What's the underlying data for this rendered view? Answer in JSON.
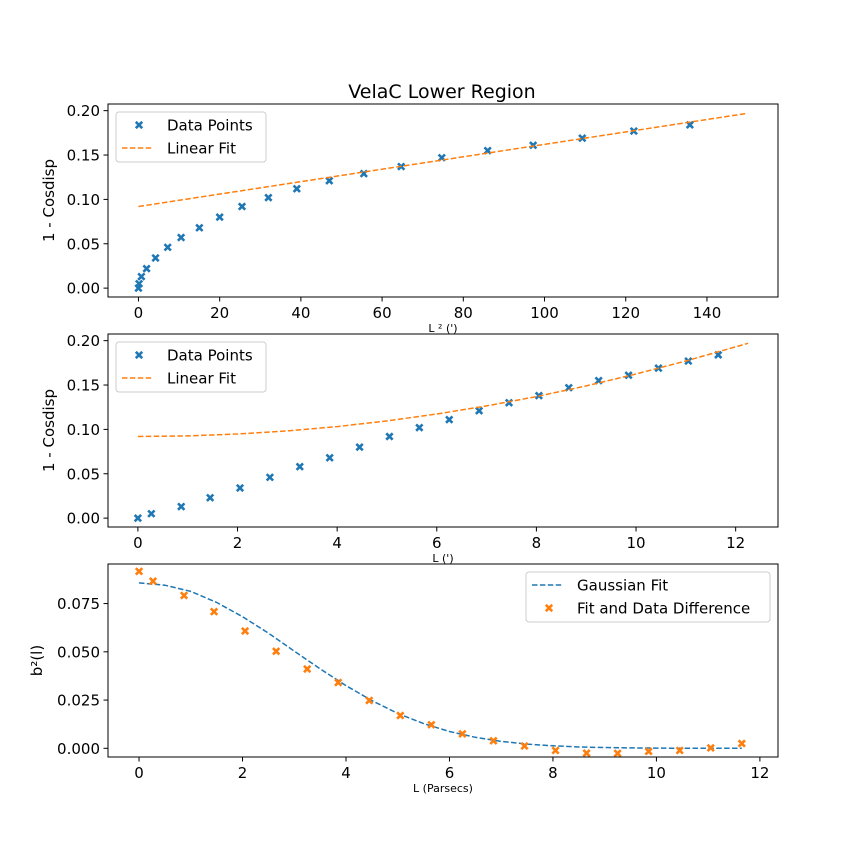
{
  "figure_title": "VelaC Lower Region",
  "colors": {
    "blue": "#1f77b4",
    "orange": "#ff7f0e"
  },
  "chart_data": [
    {
      "type": "scatter",
      "title": "VelaC Lower Region",
      "xlabel": "L ² (')",
      "ylabel": "1 - Cosdisp",
      "xlim": [
        -7.5,
        157.5
      ],
      "ylim": [
        -0.01,
        0.2075
      ],
      "xticks": [
        0,
        20,
        40,
        60,
        80,
        100,
        120,
        140
      ],
      "yticks": [
        0.0,
        0.05,
        0.1,
        0.15,
        0.2
      ],
      "ytick_labels": [
        "0.00",
        "0.05",
        "0.10",
        "0.15",
        "0.20"
      ],
      "legend": {
        "position": "top-left",
        "entries": [
          "Data Points",
          "Linear Fit"
        ]
      },
      "series": [
        {
          "name": "Data Points",
          "kind": "scatter",
          "marker": "x",
          "color": "#1f77b4",
          "x": [
            0,
            0.15,
            0.72,
            2.0,
            4.2,
            7.2,
            10.5,
            15.0,
            20.0,
            25.5,
            32.0,
            39.0,
            47.0,
            55.5,
            64.7,
            74.7,
            86.0,
            97.2,
            109.3,
            122.0,
            135.8
          ],
          "y": [
            0.0,
            0.005,
            0.013,
            0.022,
            0.034,
            0.046,
            0.057,
            0.068,
            0.08,
            0.092,
            0.102,
            0.112,
            0.121,
            0.129,
            0.137,
            0.147,
            0.155,
            0.161,
            0.169,
            0.177,
            0.184
          ]
        },
        {
          "name": "Linear Fit",
          "kind": "line",
          "dash": true,
          "color": "#ff7f0e",
          "x": [
            0,
            150
          ],
          "y": [
            0.092,
            0.197
          ]
        }
      ]
    },
    {
      "type": "scatter",
      "xlabel": "L (')",
      "ylabel": "1 - Cosdisp",
      "xlim": [
        -0.6,
        12.85
      ],
      "ylim": [
        -0.01,
        0.2075
      ],
      "xticks": [
        0,
        2,
        4,
        6,
        8,
        10,
        12
      ],
      "yticks": [
        0.0,
        0.05,
        0.1,
        0.15,
        0.2
      ],
      "ytick_labels": [
        "0.00",
        "0.05",
        "0.10",
        "0.15",
        "0.20"
      ],
      "legend": {
        "position": "top-left",
        "entries": [
          "Data Points",
          "Linear Fit"
        ]
      },
      "series": [
        {
          "name": "Data Points",
          "kind": "scatter",
          "marker": "x",
          "color": "#1f77b4",
          "x": [
            0,
            0.27,
            0.87,
            1.45,
            2.05,
            2.65,
            3.25,
            3.85,
            4.45,
            5.05,
            5.65,
            6.25,
            6.85,
            7.45,
            8.05,
            8.65,
            9.25,
            9.85,
            10.45,
            11.05,
            11.65
          ],
          "y": [
            0.0,
            0.005,
            0.013,
            0.023,
            0.034,
            0.046,
            0.058,
            0.068,
            0.08,
            0.092,
            0.102,
            0.111,
            0.121,
            0.13,
            0.138,
            0.147,
            0.155,
            0.161,
            0.169,
            0.177,
            0.184
          ]
        },
        {
          "name": "Linear Fit",
          "kind": "curve",
          "dash": true,
          "color": "#ff7f0e",
          "x": [
            0,
            1,
            2,
            3,
            4,
            5,
            6,
            7,
            8,
            9,
            10,
            11,
            12.25
          ],
          "y": [
            0.092,
            0.0927,
            0.0948,
            0.0983,
            0.1032,
            0.1096,
            0.1174,
            0.1265,
            0.137,
            0.149,
            0.1624,
            0.1771,
            0.197
          ]
        }
      ]
    },
    {
      "type": "scatter",
      "xlabel": "L (Parsecs)",
      "ylabel": "b²(l)",
      "xlim": [
        -0.6,
        12.35
      ],
      "ylim": [
        -0.0045,
        0.0955
      ],
      "xticks": [
        0,
        2,
        4,
        6,
        8,
        10,
        12
      ],
      "yticks": [
        0.0,
        0.025,
        0.05,
        0.075
      ],
      "ytick_labels": [
        "0.000",
        "0.025",
        "0.050",
        "0.075"
      ],
      "legend": {
        "position": "top-right",
        "entries": [
          "Gaussian Fit",
          "Fit and Data Difference"
        ]
      },
      "series": [
        {
          "name": "Gaussian Fit",
          "kind": "curve",
          "dash": true,
          "color": "#1f77b4",
          "x": [
            0,
            0.5,
            1,
            1.5,
            2,
            2.5,
            3,
            3.5,
            4,
            4.5,
            5,
            5.5,
            6,
            6.5,
            7,
            7.5,
            8,
            8.5,
            9,
            9.5,
            10,
            10.5,
            11,
            11.5,
            11.65
          ],
          "y": [
            0.0857,
            0.0845,
            0.0813,
            0.0756,
            0.0682,
            0.0597,
            0.0503,
            0.0412,
            0.0325,
            0.0247,
            0.0181,
            0.0128,
            0.0087,
            0.0057,
            0.0036,
            0.0022,
            0.0013,
            0.0007,
            0.0004,
            0.0002,
            0.0001,
            0.0,
            0.0,
            0.0,
            0.0
          ]
        },
        {
          "name": "Fit and Data Difference",
          "kind": "scatter",
          "marker": "x",
          "color": "#ff7f0e",
          "x": [
            0,
            0.27,
            0.87,
            1.45,
            2.05,
            2.65,
            3.25,
            3.85,
            4.45,
            5.05,
            5.65,
            6.25,
            6.85,
            7.45,
            8.05,
            8.65,
            9.25,
            9.85,
            10.45,
            11.05,
            11.65
          ],
          "y": [
            0.0917,
            0.0866,
            0.0792,
            0.0708,
            0.0608,
            0.0503,
            0.0411,
            0.0341,
            0.0248,
            0.017,
            0.0122,
            0.0075,
            0.0039,
            0.0012,
            -0.0011,
            -0.0025,
            -0.0026,
            -0.0016,
            -0.0011,
            0.0002,
            0.0025
          ]
        }
      ]
    }
  ]
}
